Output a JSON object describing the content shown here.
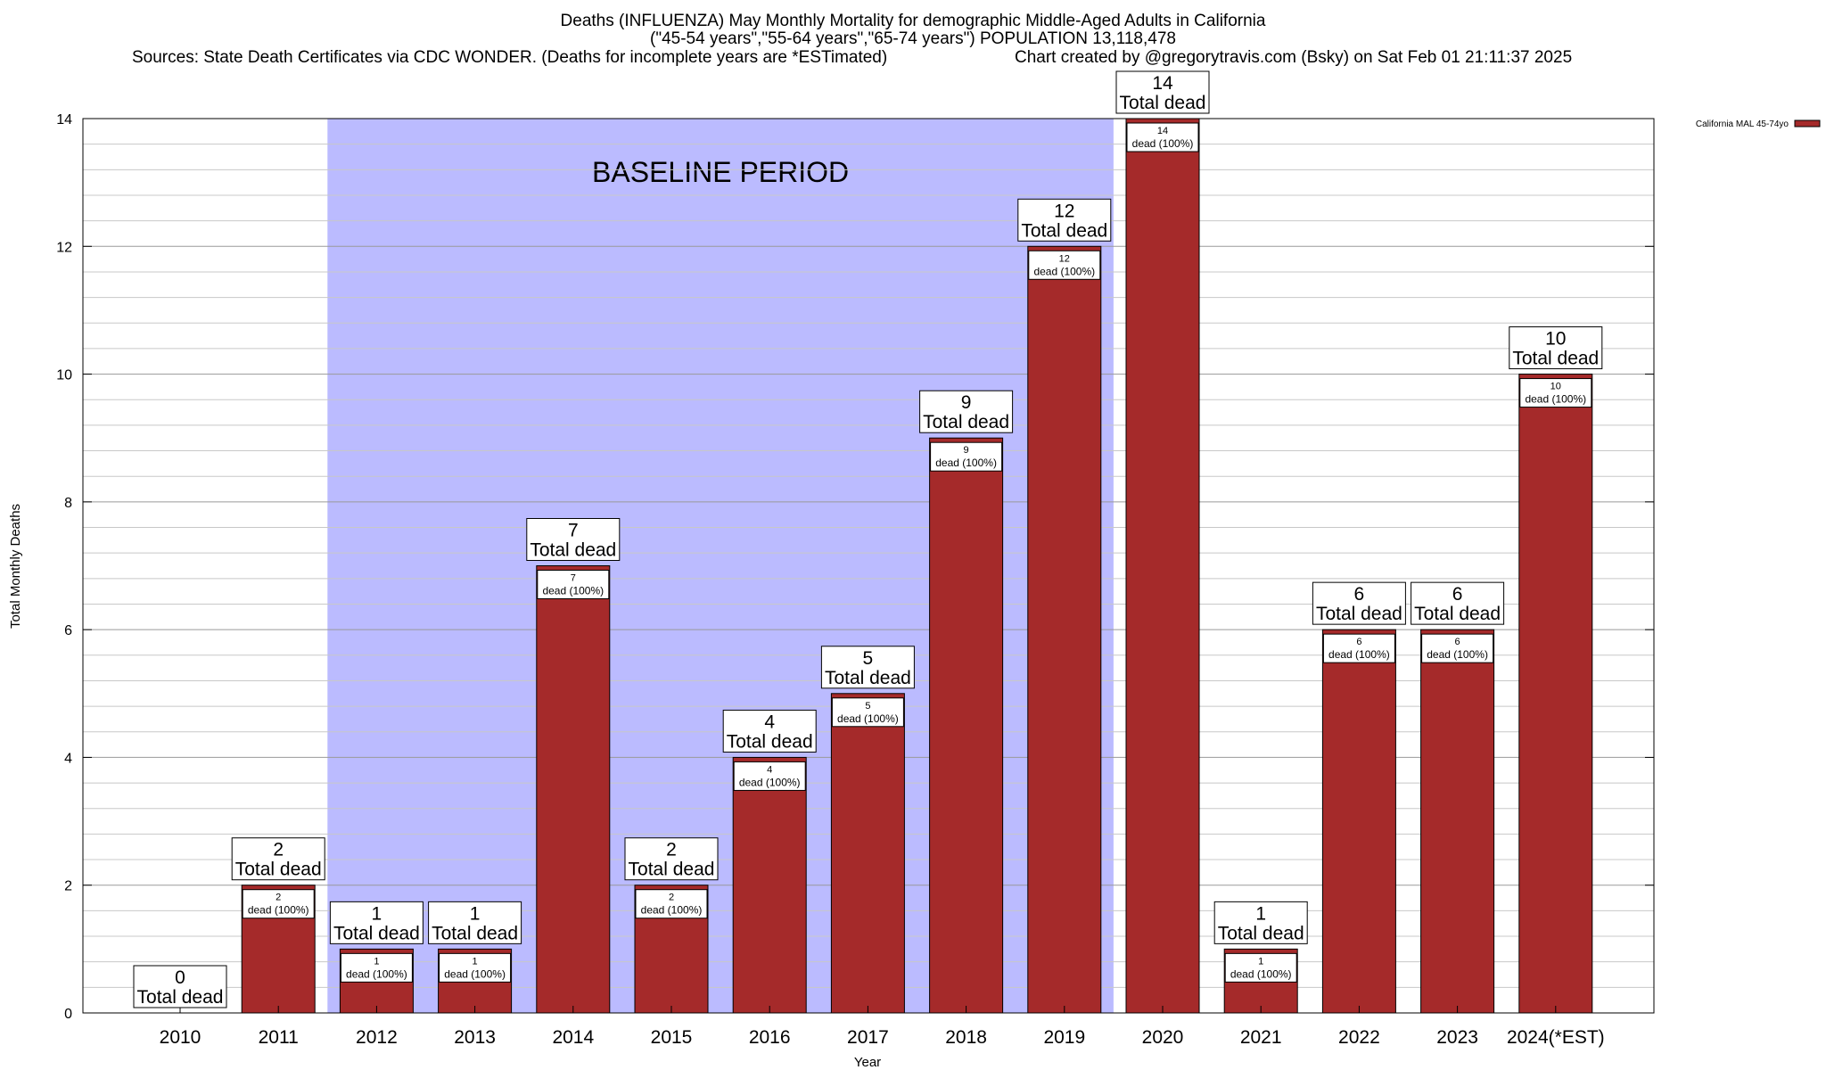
{
  "title_line1": "Deaths (INFLUENZA) May Monthly Mortality for demographic Middle-Aged Adults in California",
  "title_line2": "(\"45-54 years\",\"55-64 years\",\"65-74 years\") POPULATION 13,118,478",
  "sources": "Sources: State Death Certificates via CDC WONDER. (Deaths for incomplete years are *ESTimated)",
  "credit": "Chart created by @gregorytravis.com (Bsky) on Sat Feb 01 21:11:37 2025",
  "chart_data": {
    "type": "bar",
    "title": "Deaths (INFLUENZA) May Monthly Mortality for demographic Middle-Aged Adults in California",
    "xlabel": "Year",
    "ylabel": "Total Monthly Deaths",
    "ylim": [
      0,
      14
    ],
    "yticks": [
      "0",
      "2",
      "4",
      "6",
      "8",
      "10",
      "12",
      "14"
    ],
    "grid": true,
    "legend_position": "top-right",
    "categories": [
      "2010",
      "2011",
      "2012",
      "2013",
      "2014",
      "2015",
      "2016",
      "2017",
      "2018",
      "2019",
      "2020",
      "2021",
      "2022",
      "2023",
      "2024(*EST)"
    ],
    "series": [
      {
        "name": "California MAL 45-74yo",
        "color": "#a52a2a",
        "values": [
          0,
          2,
          1,
          1,
          7,
          2,
          4,
          5,
          9,
          12,
          14,
          1,
          6,
          6,
          10
        ]
      }
    ],
    "total_label_suffix": "Total dead",
    "inner_label_suffix": "dead (100%)",
    "baseline": {
      "label": "BASELINE PERIOD",
      "from": "2012",
      "to": "2019",
      "color": "#bbbbff"
    }
  }
}
